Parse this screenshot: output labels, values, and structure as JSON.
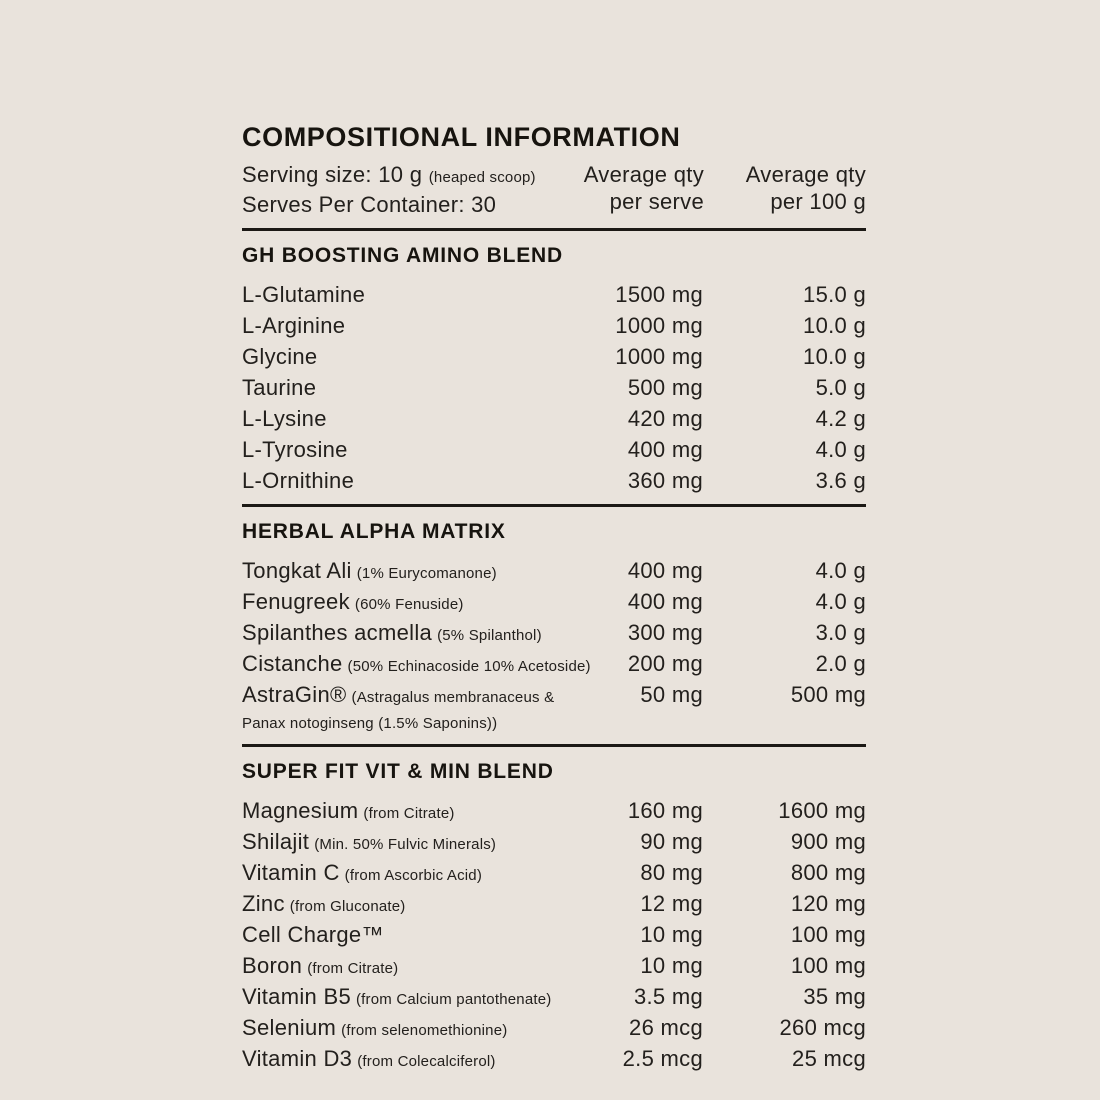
{
  "colors": {
    "background": "#e9e3dc",
    "text": "#23201d",
    "heading": "#17140f",
    "divider": "#1c1915"
  },
  "panel": {
    "title": "COMPOSITIONAL INFORMATION",
    "serving_size_label": "Serving size: 10 g",
    "serving_size_note": "(heaped scoop)",
    "serves_label": "Serves Per Container: 30",
    "columns": [
      {
        "line1": "Average qty",
        "line2": "per serve"
      },
      {
        "line1": "Average qty",
        "line2": "per 100 g"
      }
    ],
    "sections": [
      {
        "name": "GH BOOSTING AMINO BLEND",
        "rows": [
          {
            "name": "L-Glutamine",
            "note": "",
            "serve": "1500 mg",
            "per100": "15.0 g"
          },
          {
            "name": "L-Arginine",
            "note": "",
            "serve": "1000 mg",
            "per100": "10.0 g"
          },
          {
            "name": "Glycine",
            "note": "",
            "serve": "1000 mg",
            "per100": "10.0 g"
          },
          {
            "name": "Taurine",
            "note": "",
            "serve": "500 mg",
            "per100": "5.0 g"
          },
          {
            "name": "L-Lysine",
            "note": "",
            "serve": "420 mg",
            "per100": "4.2 g"
          },
          {
            "name": "L-Tyrosine",
            "note": "",
            "serve": "400 mg",
            "per100": "4.0 g"
          },
          {
            "name": "L-Ornithine",
            "note": "",
            "serve": "360 mg",
            "per100": "3.6 g"
          }
        ]
      },
      {
        "name": "HERBAL ALPHA MATRIX",
        "rows": [
          {
            "name": "Tongkat Ali",
            "note": "(1% Eurycomanone)",
            "serve": "400 mg",
            "per100": "4.0 g"
          },
          {
            "name": "Fenugreek",
            "note": "(60% Fenuside)",
            "serve": "400 mg",
            "per100": "4.0 g"
          },
          {
            "name": "Spilanthes acmella",
            "note": "(5% Spilanthol)",
            "serve": "300 mg",
            "per100": "3.0 g"
          },
          {
            "name": "Cistanche",
            "note": "(50% Echinacoside 10% Acetoside)",
            "serve": "200 mg",
            "per100": "2.0 g"
          },
          {
            "name": "AstraGin®",
            "note": "(Astragalus membranaceus & Panax notoginseng (1.5% Saponins))",
            "serve": "50 mg",
            "per100": "500 mg"
          }
        ]
      },
      {
        "name": "SUPER FIT VIT & MIN BLEND",
        "rows": [
          {
            "name": "Magnesium",
            "note": "(from Citrate)",
            "serve": "160 mg",
            "per100": "1600 mg"
          },
          {
            "name": "Shilajit",
            "note": "(Min. 50% Fulvic Minerals)",
            "serve": "90 mg",
            "per100": "900 mg"
          },
          {
            "name": "Vitamin C",
            "note": "(from Ascorbic Acid)",
            "serve": "80 mg",
            "per100": "800 mg"
          },
          {
            "name": "Zinc",
            "note": "(from Gluconate)",
            "serve": "12 mg",
            "per100": "120 mg"
          },
          {
            "name": "Cell Charge™",
            "note": "",
            "serve": "10 mg",
            "per100": "100 mg"
          },
          {
            "name": "Boron",
            "note": "(from Citrate)",
            "serve": "10 mg",
            "per100": "100 mg"
          },
          {
            "name": "Vitamin B5",
            "note": "(from Calcium pantothenate)",
            "serve": "3.5 mg",
            "per100": "35 mg"
          },
          {
            "name": "Selenium",
            "note": "(from selenomethionine)",
            "serve": "26 mcg",
            "per100": "260 mcg"
          },
          {
            "name": "Vitamin D3",
            "note": "(from Colecalciferol)",
            "serve": "2.5 mcg",
            "per100": "25 mcg"
          }
        ]
      }
    ]
  }
}
